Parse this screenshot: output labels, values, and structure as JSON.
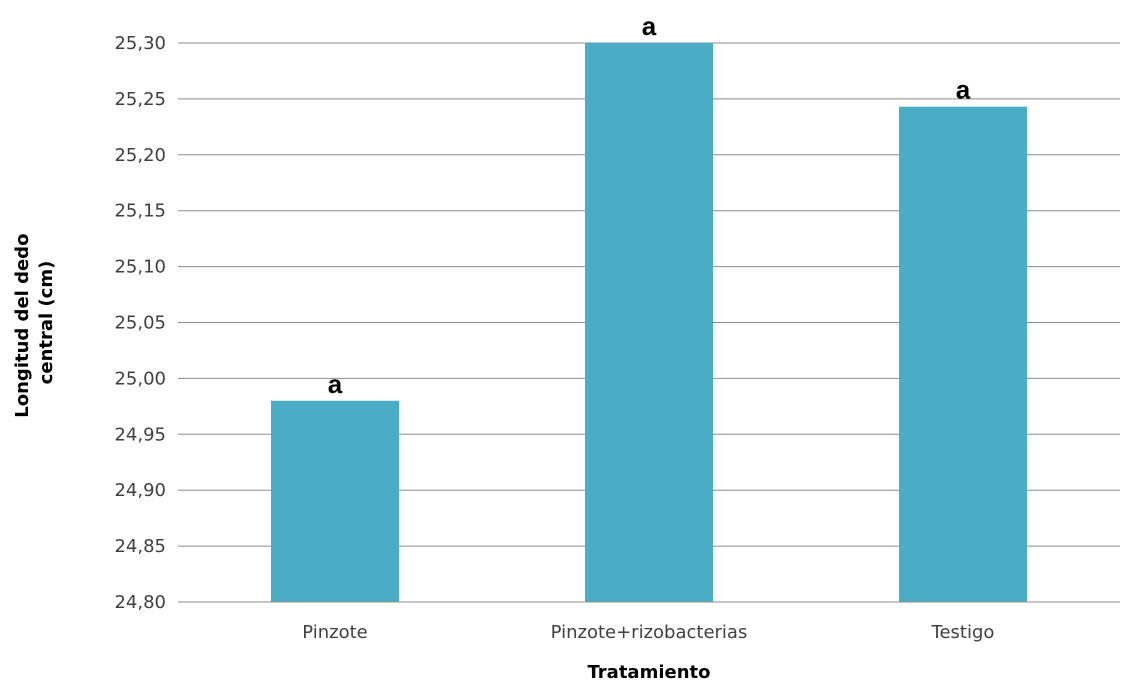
{
  "chart_data": {
    "type": "bar",
    "categories": [
      "Pinzote",
      "Pinzote+rizobacterias",
      "Testigo"
    ],
    "values": [
      24.98,
      25.3,
      25.243
    ],
    "data_labels": [
      "a",
      "a",
      "a"
    ],
    "xlabel": "Tratamiento",
    "ylabel_lines": [
      "Longitud del dedo",
      "central (cm)"
    ],
    "ylim": [
      24.8,
      25.3
    ],
    "yticks": [
      "24,80",
      "24,85",
      "24,90",
      "24,95",
      "25,00",
      "25,05",
      "25,10",
      "25,15",
      "25,20",
      "25,25",
      "25,30"
    ],
    "grid": true,
    "legend": "none",
    "bar_color": "#4BACC6"
  }
}
